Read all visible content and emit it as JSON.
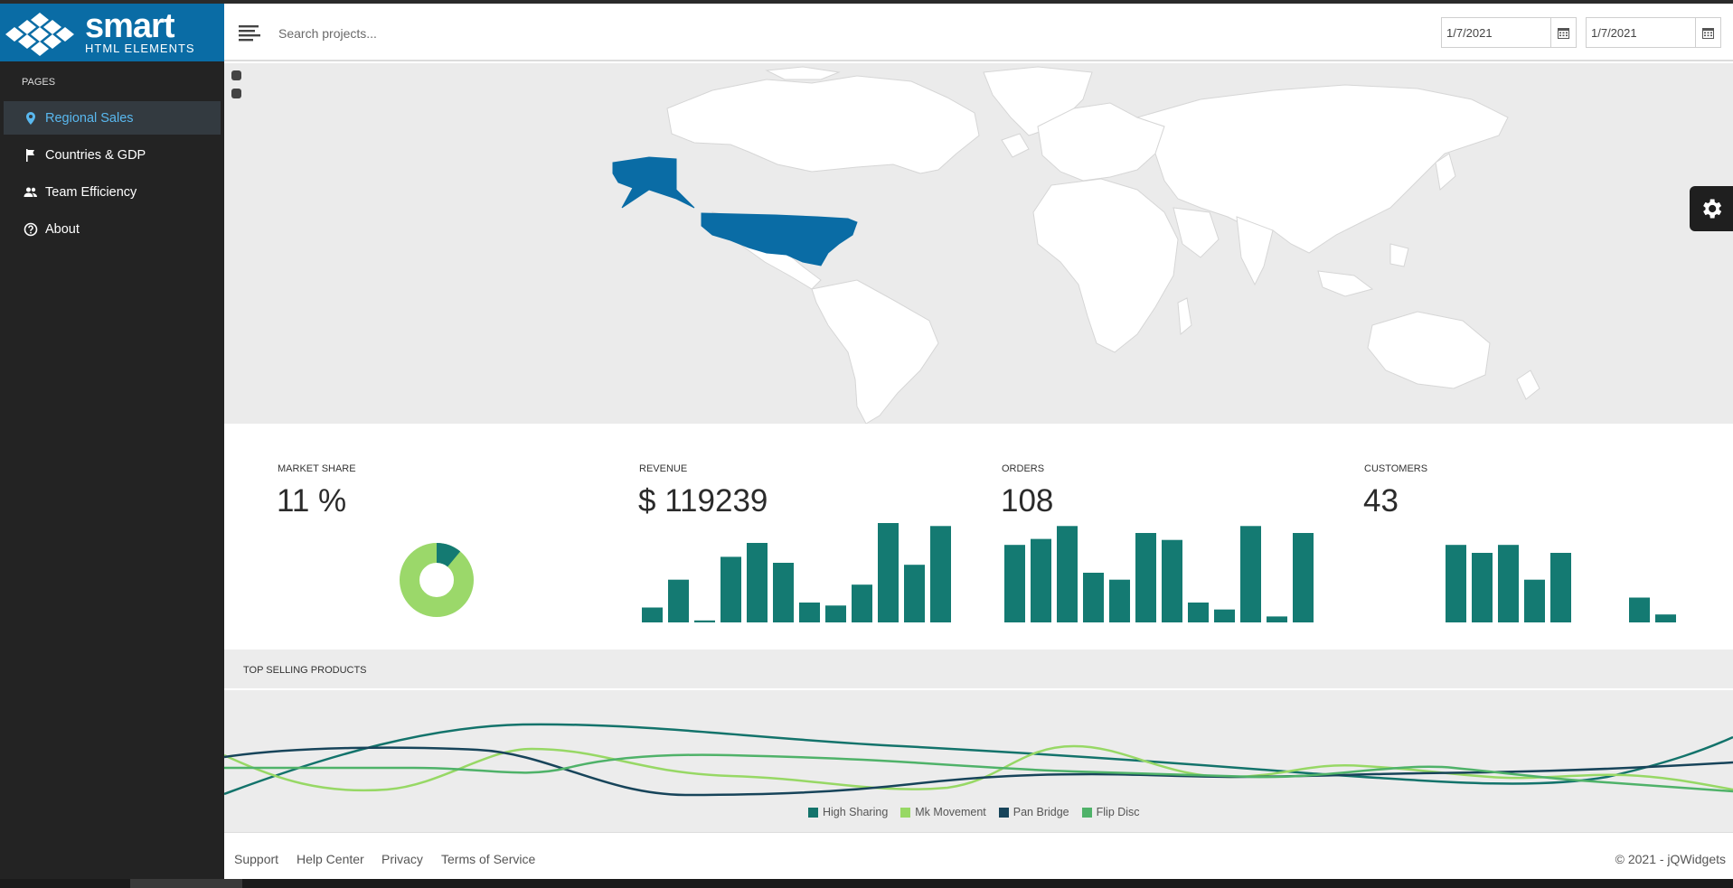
{
  "brand": {
    "name": "smart",
    "subtitle": "HTML ELEMENTS"
  },
  "sidebar": {
    "section_label": "PAGES",
    "items": [
      {
        "label": "Regional Sales",
        "icon": "map-pin-icon",
        "active": true
      },
      {
        "label": "Countries & GDP",
        "icon": "flag-icon",
        "active": false
      },
      {
        "label": "Team Efficiency",
        "icon": "people-icon",
        "active": false
      },
      {
        "label": "About",
        "icon": "help-circle-icon",
        "active": false
      }
    ]
  },
  "header": {
    "search_placeholder": "Search projects...",
    "date_from": "1/7/2021",
    "date_to": "1/7/2021"
  },
  "map": {
    "highlighted_region": "United States",
    "highlight_color": "#0a6ca5"
  },
  "kpis": {
    "market_share": {
      "label": "MARKET SHARE",
      "value": "11 %",
      "share": 0.11
    },
    "revenue": {
      "label": "REVENUE",
      "value": "$ 119239",
      "bars": [
        0.15,
        0.43,
        0.02,
        0.66,
        0.8,
        0.6,
        0.2,
        0.17,
        0.38,
        1.0,
        0.58,
        0.97
      ]
    },
    "orders": {
      "label": "ORDERS",
      "value": "108",
      "bars": [
        0.78,
        0.84,
        0.97,
        0.5,
        0.43,
        0.9,
        0.83,
        0.2,
        0.13,
        0.97,
        0.06,
        0.9
      ]
    },
    "customers": {
      "label": "CUSTOMERS",
      "value": "43",
      "bars": [
        0.0,
        0.0,
        0.0,
        0.78,
        0.7,
        0.78,
        0.43,
        0.7,
        0.0,
        0.0,
        0.25,
        0.08
      ]
    }
  },
  "colors": {
    "bar": "#147a72",
    "donut_light": "#9bd86a",
    "donut_dark": "#147a72",
    "sidebar_active_text": "#59b8ef"
  },
  "products": {
    "title": "TOP SELLING PRODUCTS",
    "series": [
      {
        "name": "High Sharing",
        "color": "#13736b"
      },
      {
        "name": "Mk Movement",
        "color": "#97d865"
      },
      {
        "name": "Pan Bridge",
        "color": "#17445a"
      },
      {
        "name": "Flip Disc",
        "color": "#4fb269"
      }
    ]
  },
  "footer": {
    "links": [
      "Support",
      "Help Center",
      "Privacy",
      "Terms of Service"
    ],
    "copyright": "© 2021 - jQWidgets"
  }
}
